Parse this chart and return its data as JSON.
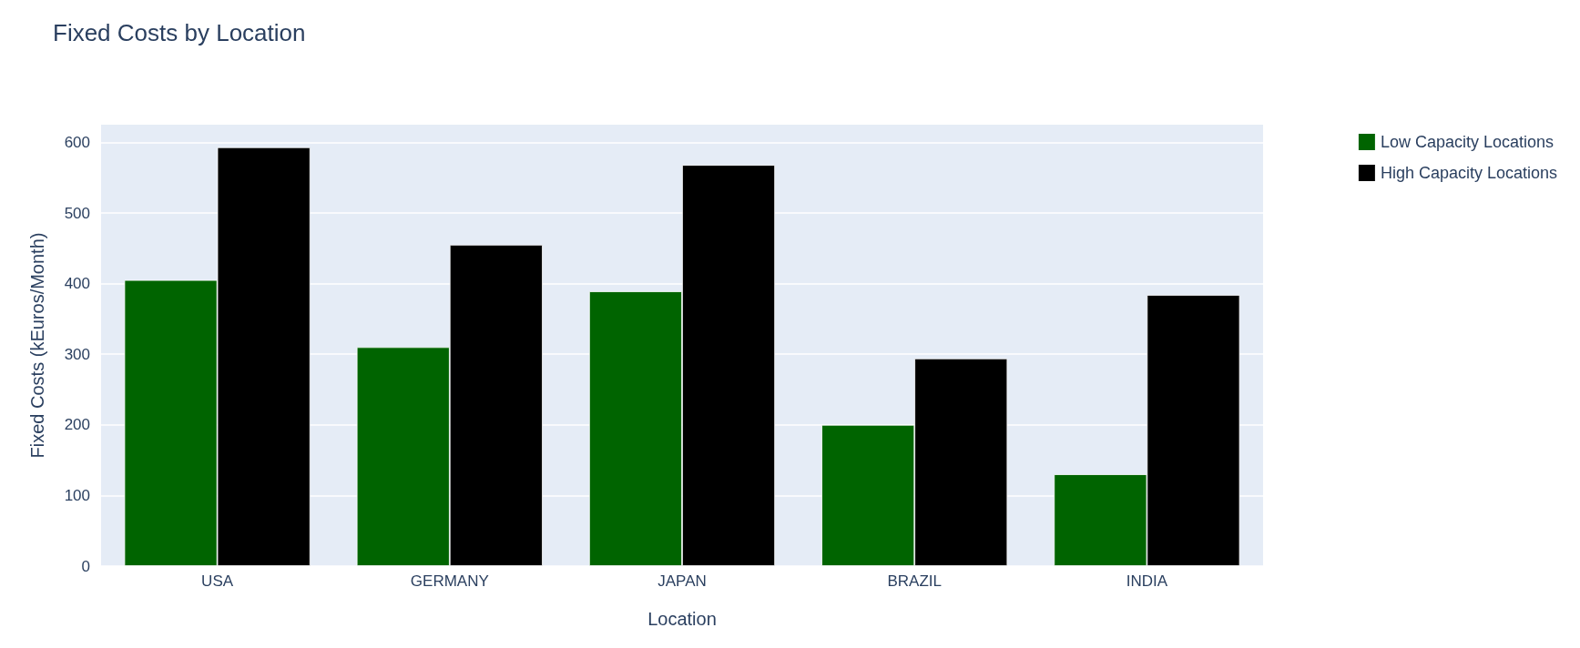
{
  "chart_data": {
    "type": "bar",
    "title": "Fixed Costs by Location",
    "xlabel": "Location",
    "ylabel": "Fixed Costs (kEuros/Month)",
    "categories": [
      "USA",
      "GERMANY",
      "JAPAN",
      "BRAZIL",
      "INDIA"
    ],
    "series": [
      {
        "name": "Low Capacity Locations",
        "color": "#006400",
        "values": [
          405,
          310,
          389,
          200,
          130
        ]
      },
      {
        "name": "High Capacity Locations",
        "color": "#000000",
        "values": [
          593,
          455,
          568,
          294,
          384
        ]
      }
    ],
    "ylim": [
      0,
      625
    ],
    "yticks": [
      0,
      100,
      200,
      300,
      400,
      500,
      600
    ],
    "grid": "y",
    "legend": "top right"
  }
}
